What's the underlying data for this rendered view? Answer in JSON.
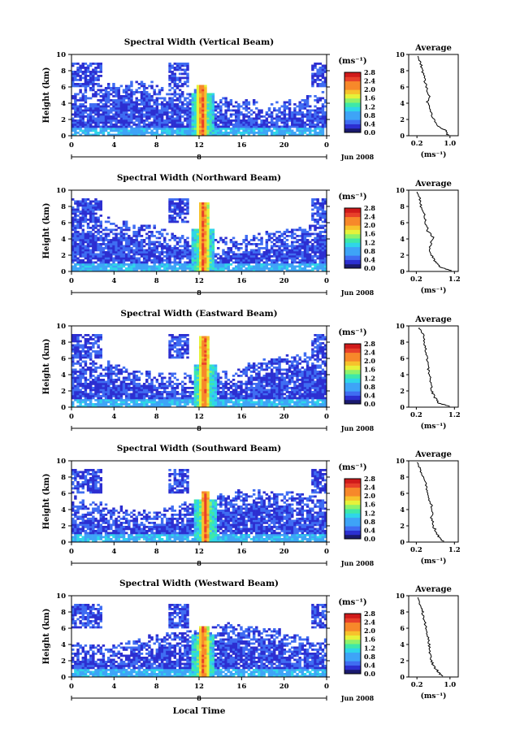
{
  "figure": {
    "x_label": "Local Time",
    "color_unit_label": "(ms⁻¹)",
    "colorbar_ticks": [
      "2.8",
      "2.4",
      "2.0",
      "1.6",
      "1.2",
      "0.8",
      "0.4",
      "0.0"
    ],
    "y_axis_label": "Height (km)",
    "height_ticks": [
      "0",
      "2",
      "4",
      "6",
      "8",
      "10"
    ],
    "time_ticks": [
      "0",
      "4",
      "8",
      "12",
      "16",
      "20",
      "0"
    ],
    "day_marker": "8",
    "date_label": "Jun 2008",
    "average_title": "Average",
    "average_x_label": "(ms⁻¹)",
    "colors": {
      "colormap": [
        "#1a1a6e",
        "#2c2fd1",
        "#3f6df2",
        "#3ea4f7",
        "#2fd6e8",
        "#3fe8a8",
        "#8ef26a",
        "#e6f23a",
        "#f7c22c",
        "#f7882a",
        "#e8402a",
        "#d01a1a"
      ],
      "background": "#ffffff",
      "line": "#000000"
    }
  },
  "chart_data": [
    {
      "type": "heatmap",
      "title": "Spectral Width (Vertical Beam)",
      "x_range": [
        0,
        24
      ],
      "y_range": [
        0,
        10
      ],
      "color_range": [
        0.0,
        2.8
      ],
      "spike_hour": 12.3,
      "spike_top_km": 6.2,
      "average": {
        "type": "line",
        "x_ticks": [
          "0.2",
          "1.0"
        ],
        "x_range": [
          0.0,
          1.2
        ],
        "profile": [
          [
            0.95,
            0.1
          ],
          [
            0.9,
            0.6
          ],
          [
            0.7,
            1.2
          ],
          [
            0.6,
            2
          ],
          [
            0.55,
            3
          ],
          [
            0.45,
            4
          ],
          [
            0.5,
            5
          ],
          [
            0.42,
            6
          ],
          [
            0.38,
            7
          ],
          [
            0.33,
            8
          ],
          [
            0.28,
            9
          ],
          [
            0.22,
            9.8
          ]
        ]
      }
    },
    {
      "type": "heatmap",
      "title": "Spectral Width (Northward Beam)",
      "x_range": [
        0,
        24
      ],
      "y_range": [
        0,
        10
      ],
      "color_range": [
        0.0,
        2.8
      ],
      "spike_hour": 12.4,
      "spike_top_km": 8.6,
      "average": {
        "type": "line",
        "x_ticks": [
          "0.2",
          "1.2"
        ],
        "x_range": [
          0.0,
          1.3
        ],
        "profile": [
          [
            1.1,
            0.1
          ],
          [
            0.85,
            0.5
          ],
          [
            0.7,
            1.2
          ],
          [
            0.6,
            2
          ],
          [
            0.55,
            3
          ],
          [
            0.65,
            4.2
          ],
          [
            0.5,
            5
          ],
          [
            0.45,
            6
          ],
          [
            0.4,
            7
          ],
          [
            0.32,
            8
          ],
          [
            0.3,
            9
          ],
          [
            0.22,
            9.8
          ]
        ]
      }
    },
    {
      "type": "heatmap",
      "title": "Spectral Width (Eastward Beam)",
      "x_range": [
        0,
        24
      ],
      "y_range": [
        0,
        10
      ],
      "color_range": [
        0.0,
        2.8
      ],
      "spike_hour": 12.5,
      "spike_top_km": 8.7,
      "average": {
        "type": "line",
        "x_ticks": [
          "0.2",
          "1.2"
        ],
        "x_range": [
          0.0,
          1.3
        ],
        "profile": [
          [
            1.05,
            0.1
          ],
          [
            0.8,
            0.5
          ],
          [
            0.68,
            1.2
          ],
          [
            0.6,
            2
          ],
          [
            0.58,
            3
          ],
          [
            0.55,
            4
          ],
          [
            0.5,
            5
          ],
          [
            0.48,
            6
          ],
          [
            0.45,
            7
          ],
          [
            0.42,
            8
          ],
          [
            0.38,
            9
          ],
          [
            0.28,
            9.8
          ]
        ]
      }
    },
    {
      "type": "heatmap",
      "title": "Spectral Width (Southward Beam)",
      "x_range": [
        0,
        24
      ],
      "y_range": [
        0,
        10
      ],
      "color_range": [
        0.0,
        2.8
      ],
      "spike_hour": 12.6,
      "spike_top_km": 6.3,
      "average": {
        "type": "line",
        "x_ticks": [
          "0.2",
          "1.2"
        ],
        "x_range": [
          0.0,
          1.3
        ],
        "profile": [
          [
            0.9,
            0.1
          ],
          [
            0.8,
            0.6
          ],
          [
            0.72,
            1.2
          ],
          [
            0.65,
            2
          ],
          [
            0.6,
            3
          ],
          [
            0.62,
            4.2
          ],
          [
            0.55,
            5
          ],
          [
            0.5,
            6
          ],
          [
            0.45,
            7
          ],
          [
            0.38,
            8
          ],
          [
            0.3,
            9
          ],
          [
            0.22,
            9.8
          ]
        ]
      }
    },
    {
      "type": "heatmap",
      "title": "Spectral Width (Westward Beam)",
      "x_range": [
        0,
        24
      ],
      "y_range": [
        0,
        10
      ],
      "color_range": [
        0.0,
        2.8
      ],
      "spike_hour": 12.4,
      "spike_top_km": 6.2,
      "average": {
        "type": "line",
        "x_ticks": [
          "0.2",
          "1.0"
        ],
        "x_range": [
          0.0,
          1.2
        ],
        "profile": [
          [
            0.8,
            0.1
          ],
          [
            0.72,
            0.6
          ],
          [
            0.62,
            1.2
          ],
          [
            0.55,
            2
          ],
          [
            0.5,
            3
          ],
          [
            0.5,
            4
          ],
          [
            0.45,
            5
          ],
          [
            0.42,
            6
          ],
          [
            0.38,
            7
          ],
          [
            0.33,
            8
          ],
          [
            0.3,
            8.6
          ],
          [
            0.22,
            9.8
          ]
        ]
      }
    }
  ]
}
